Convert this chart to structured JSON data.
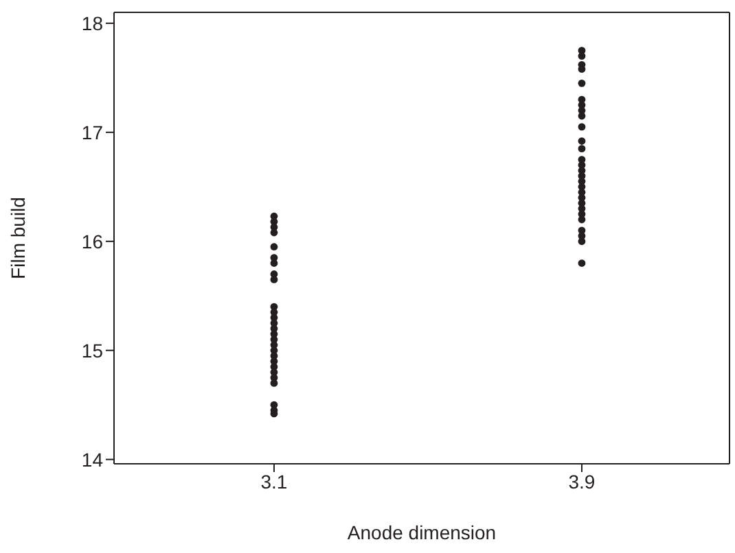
{
  "chart_data": {
    "type": "scatter",
    "xlabel": "Anode dimension",
    "ylabel": "Film build",
    "categories": [
      "3.1",
      "3.9"
    ],
    "ylim": [
      13.96,
      18.1
    ],
    "yticks": [
      14,
      15,
      16,
      17,
      18
    ],
    "marker": "circle",
    "grid": false,
    "series": [
      {
        "color": "#231f20",
        "x": [
          "3.1",
          "3.1",
          "3.1",
          "3.1",
          "3.1",
          "3.1",
          "3.1",
          "3.1",
          "3.1",
          "3.1",
          "3.1",
          "3.1",
          "3.1",
          "3.1",
          "3.1",
          "3.1",
          "3.1",
          "3.1",
          "3.1",
          "3.1",
          "3.1",
          "3.1",
          "3.1",
          "3.1",
          "3.1",
          "3.1",
          "3.1",
          "3.9",
          "3.9",
          "3.9",
          "3.9",
          "3.9",
          "3.9",
          "3.9",
          "3.9",
          "3.9",
          "3.9",
          "3.9",
          "3.9",
          "3.9",
          "3.9",
          "3.9",
          "3.9",
          "3.9",
          "3.9",
          "3.9",
          "3.9",
          "3.9",
          "3.9",
          "3.9",
          "3.9",
          "3.9",
          "3.9",
          "3.9",
          "3.9"
        ],
        "values": [
          16.23,
          16.18,
          16.13,
          16.08,
          15.95,
          15.85,
          15.8,
          15.7,
          15.65,
          15.4,
          15.35,
          15.3,
          15.25,
          15.2,
          15.15,
          15.1,
          15.05,
          15.0,
          14.95,
          14.9,
          14.85,
          14.8,
          14.75,
          14.7,
          14.5,
          14.45,
          14.42,
          17.75,
          17.7,
          17.62,
          17.58,
          17.45,
          17.3,
          17.25,
          17.2,
          17.15,
          17.05,
          16.85,
          16.75,
          16.7,
          16.65,
          16.6,
          16.55,
          16.5,
          16.45,
          16.4,
          16.35,
          16.3,
          16.25,
          16.2,
          16.1,
          16.05,
          16.0,
          15.8,
          16.92
        ]
      }
    ]
  }
}
